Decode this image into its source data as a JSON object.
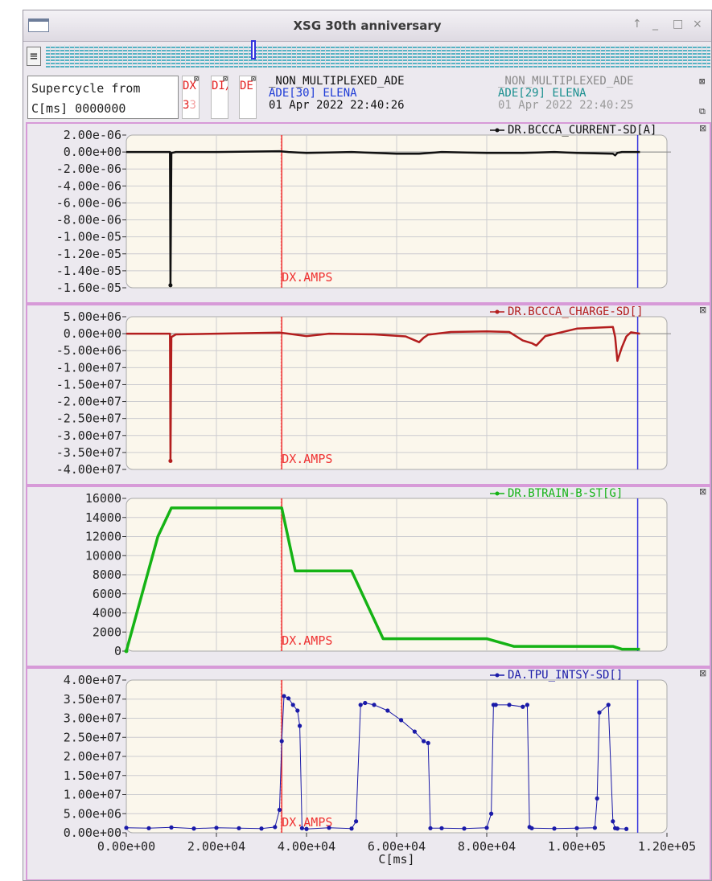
{
  "window": {
    "title": "XSG 30th anniversary",
    "controls": {
      "pin": "↑",
      "minimize": "_",
      "maximize": "□",
      "close": "×"
    }
  },
  "toolbar": {
    "menu_icon": "hamburger-menu-icon"
  },
  "info": {
    "supercycle_line1": "Supercycle from",
    "supercycle_line2": "C[ms] 0000000",
    "flags": [
      {
        "label": "DX",
        "value": "3",
        "value2": "3"
      },
      {
        "label": "DI/",
        "value": ""
      },
      {
        "label": "DE:",
        "value": ""
      }
    ],
    "current_cycle": {
      "name": "_NON_MULTIPLEXED_ADE",
      "user": "ADE[30] ELENA",
      "time": "01 Apr 2022 22:40:26"
    },
    "previous_cycle": {
      "name": "_NON_MULTIPLEXED_ADE",
      "user": "ADE[29] ELENA",
      "time": "01 Apr 2022 22:40:25"
    }
  },
  "colors": {
    "plot_bg": "#fbf7ec",
    "grid": "#ccccd0",
    "marker_line": "#ef3232",
    "cycle_end_line": "#3a3adf",
    "panel_border": "#d79ad8"
  },
  "markers": {
    "amps_label": "DX.AMPS",
    "amps_x": 34500,
    "end_x": 113500
  },
  "chart_data": [
    {
      "type": "line",
      "series_name": "DR.BCCCA_CURRENT-SD[A]",
      "color": "#111111",
      "ylim": [
        -1.6e-05,
        2e-06
      ],
      "yticks": [
        2e-06,
        0,
        -2e-06,
        -4e-06,
        -6e-06,
        -8e-06,
        -1e-05,
        -1.2e-05,
        -1.4e-05,
        -1.6e-05
      ],
      "yticklabels": [
        "2.00e-06",
        "0.00e+00",
        "-2.00e-06",
        "-4.00e-06",
        "-6.00e-06",
        "-8.00e-06",
        "-1.00e-05",
        "-1.20e-05",
        "-1.40e-05",
        "-1.60e-05"
      ],
      "xlim": [
        0,
        120000
      ],
      "x": [
        0,
        9700,
        9800,
        10000,
        10100,
        11000,
        20000,
        34000,
        36000,
        40000,
        50000,
        60000,
        65000,
        70000,
        80000,
        88000,
        95000,
        100000,
        108000,
        108500,
        109000,
        110000,
        114000
      ],
      "y": [
        0,
        0,
        -1.57e-05,
        -2e-07,
        -1e-07,
        0,
        0,
        1e-07,
        0,
        -1e-07,
        0,
        -2e-07,
        -2e-07,
        0,
        -1e-07,
        -1e-07,
        0,
        -1e-07,
        -2e-07,
        -4e-07,
        -1e-07,
        0,
        0
      ]
    },
    {
      "type": "line",
      "series_name": "DR.BCCCA_CHARGE-SD[]",
      "color": "#b31e1e",
      "ylim": [
        -40000000,
        5000000
      ],
      "yticks": [
        5000000,
        0,
        -5000000,
        -10000000,
        -15000000,
        -20000000,
        -25000000,
        -30000000,
        -35000000,
        -40000000
      ],
      "yticklabels": [
        "5.00e+06",
        "0.00e+00",
        "-5.00e+06",
        "-1.00e+07",
        "-1.50e+07",
        "-2.00e+07",
        "-2.50e+07",
        "-3.00e+07",
        "-3.50e+07",
        "-4.00e+07"
      ],
      "xlim": [
        0,
        120000
      ],
      "x": [
        0,
        9700,
        9800,
        10000,
        11000,
        20000,
        34000,
        36000,
        40000,
        45000,
        55000,
        62000,
        65000,
        66000,
        67000,
        72000,
        80000,
        85000,
        88000,
        90000,
        91000,
        93000,
        100000,
        108000,
        108500,
        109000,
        110000,
        111000,
        112000,
        114000
      ],
      "y": [
        0,
        0,
        -37500000,
        -1000000,
        -200000,
        0,
        300000,
        0,
        -700000,
        0,
        -200000,
        -800000,
        -2500000,
        -1200000,
        -300000,
        500000,
        700000,
        500000,
        -2000000,
        -2800000,
        -3500000,
        -700000,
        1500000,
        2000000,
        -1000000,
        -8000000,
        -4000000,
        -800000,
        400000,
        0
      ]
    },
    {
      "type": "line",
      "series_name": "DR.BTRAIN-B-ST[G]",
      "color": "#15b315",
      "ylim": [
        0,
        16000
      ],
      "yticks": [
        0,
        2000,
        4000,
        6000,
        8000,
        10000,
        12000,
        14000,
        16000
      ],
      "yticklabels": [
        "0",
        "2000",
        "4000",
        "6000",
        "8000",
        "10000",
        "12000",
        "14000",
        "16000"
      ],
      "xlim": [
        0,
        120000
      ],
      "x": [
        0,
        7000,
        10000,
        34500,
        37500,
        50000,
        57000,
        80000,
        86000,
        108000,
        110000,
        114000
      ],
      "y": [
        0,
        12000,
        15000,
        15000,
        8400,
        8400,
        1300,
        1300,
        500,
        500,
        200,
        200
      ]
    },
    {
      "type": "scatter",
      "series_name": "DA.TPU_INTSY-SD[]",
      "color": "#1a1aa8",
      "ylim": [
        0,
        40000000
      ],
      "yticks": [
        0,
        5000000,
        10000000,
        15000000,
        20000000,
        25000000,
        30000000,
        35000000,
        40000000
      ],
      "yticklabels": [
        "0.00e+00",
        "5.00e+06",
        "1.00e+07",
        "1.50e+07",
        "2.00e+07",
        "2.50e+07",
        "3.00e+07",
        "3.50e+07",
        "4.00e+07"
      ],
      "xlim": [
        0,
        120000
      ],
      "xticks": [
        0,
        20000,
        40000,
        60000,
        80000,
        100000,
        120000
      ],
      "xticklabels": [
        "0.00e+00",
        "2.00e+04",
        "4.00e+04",
        "6.00e+04",
        "8.00e+04",
        "1.00e+05",
        "1.20e+05"
      ],
      "xlabel": "C[ms]",
      "x": [
        0,
        5000,
        10000,
        15000,
        20000,
        25000,
        30000,
        33000,
        34000,
        34500,
        35000,
        36000,
        37000,
        38000,
        38500,
        39000,
        40000,
        45000,
        50000,
        51000,
        52000,
        53000,
        55000,
        58000,
        61000,
        64000,
        66000,
        67000,
        67500,
        70000,
        75000,
        80000,
        81000,
        81500,
        82000,
        85000,
        88000,
        89000,
        89500,
        90000,
        95000,
        100000,
        104000,
        104500,
        105000,
        107000,
        108000,
        108500,
        109000,
        111000
      ],
      "y": [
        1300000,
        1200000,
        1400000,
        1100000,
        1300000,
        1200000,
        1100000,
        1500000,
        6000000,
        24000000,
        35800000,
        35200000,
        33500000,
        32000000,
        28000000,
        1200000,
        1000000,
        1300000,
        1100000,
        3000000,
        33500000,
        34000000,
        33500000,
        32000000,
        29500000,
        26500000,
        24000000,
        23500000,
        1200000,
        1200000,
        1100000,
        1300000,
        5000000,
        33500000,
        33500000,
        33500000,
        33000000,
        33500000,
        1500000,
        1200000,
        1100000,
        1200000,
        1300000,
        9000000,
        31500000,
        33500000,
        3000000,
        1200000,
        1100000,
        1000000
      ]
    }
  ]
}
